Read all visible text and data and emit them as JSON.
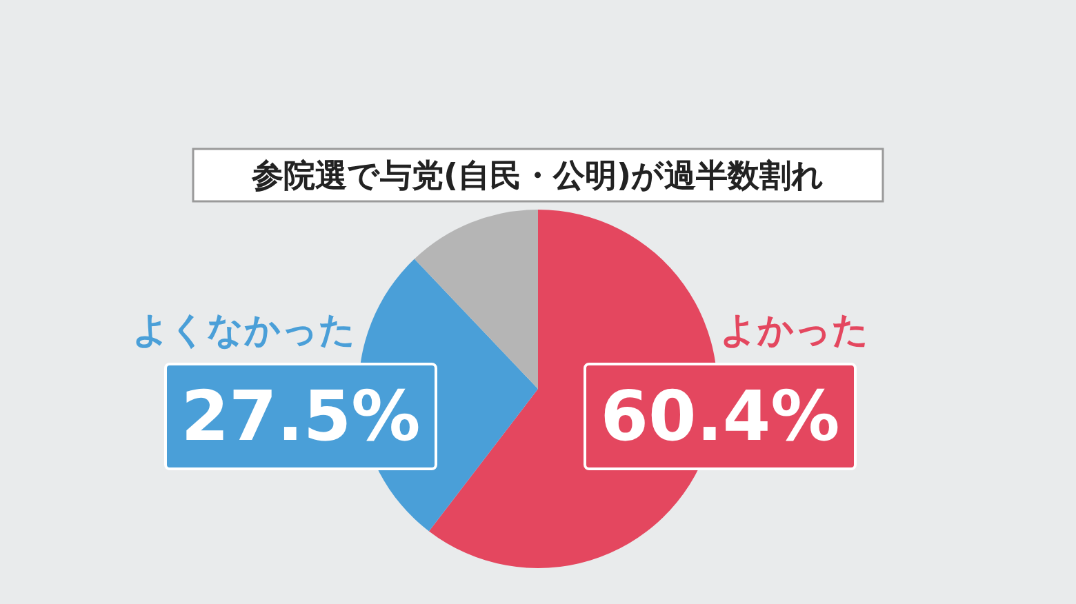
{
  "chart_data": {
    "type": "pie",
    "title": "参院選で与党(自民・公明)が過半数割れ",
    "categories": [
      "よかった",
      "よくなかった",
      null
    ],
    "values": [
      60.4,
      27.5,
      12.1
    ],
    "colors": [
      "#e4475f",
      "#4a9fd8",
      "#b5b5b5"
    ],
    "value_labels": [
      "60.4%",
      "27.5%",
      null
    ]
  }
}
